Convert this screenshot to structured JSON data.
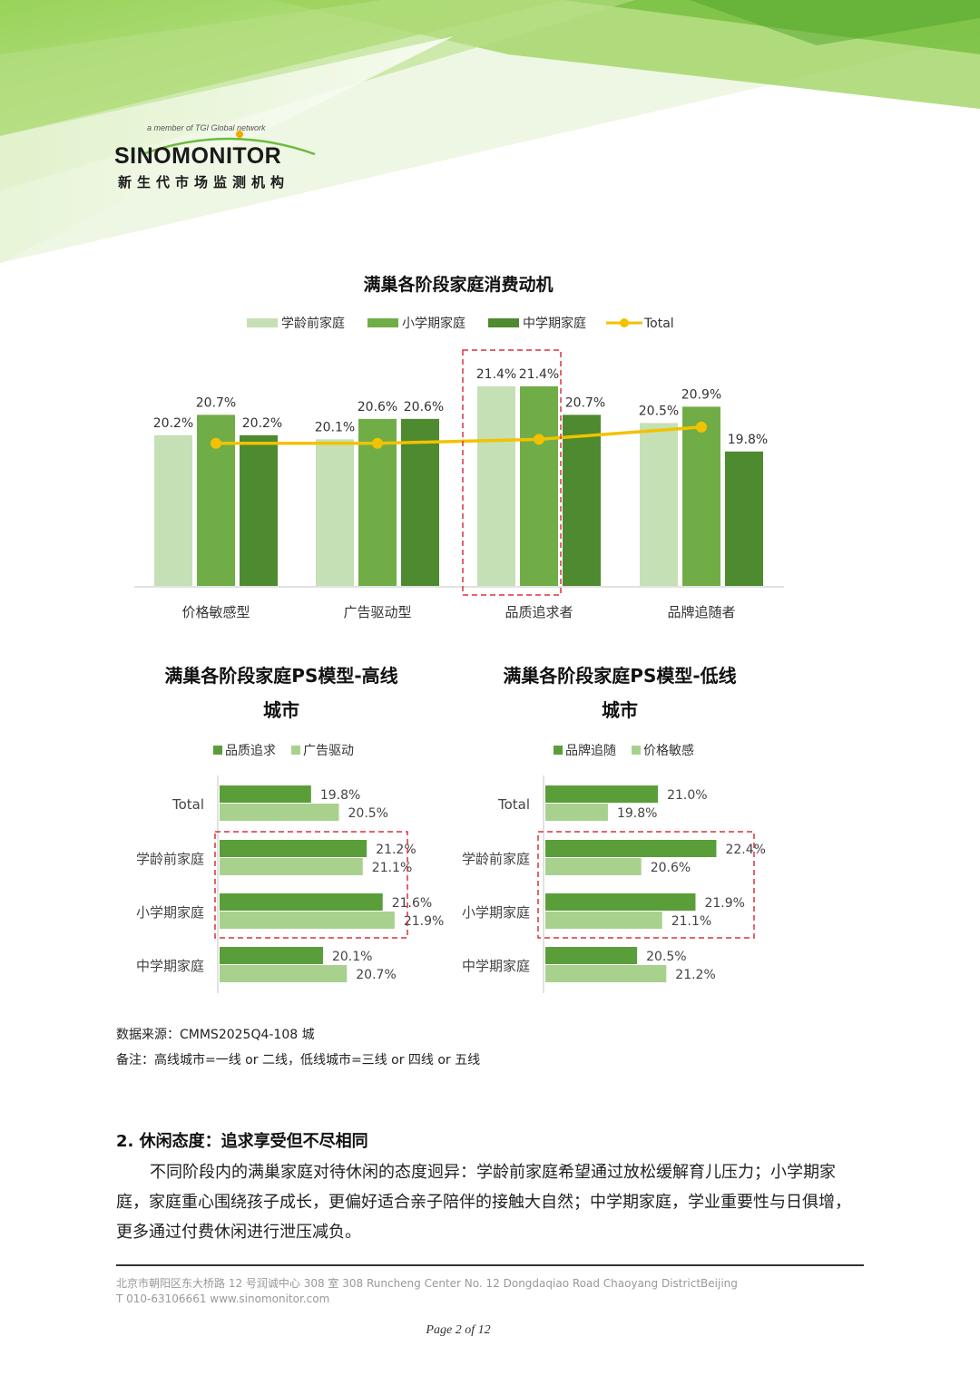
{
  "header": {
    "logo_tag": "a member of TGI Global network",
    "logo_name": "SINOMONITOR",
    "logo_subtitle": "新生代市场监测机构"
  },
  "chart_data": [
    {
      "type": "bar",
      "title": "满巢各阶段家庭消费动机",
      "categories": [
        "价格敏感型",
        "广告驱动型",
        "品质追求者",
        "品牌追随者"
      ],
      "series": [
        {
          "name": "学龄前家庭",
          "values": [
            20.2,
            20.1,
            21.4,
            20.5
          ],
          "labels": [
            "20.2%",
            "20.1%",
            "21.4%",
            "20.5%"
          ]
        },
        {
          "name": "小学期家庭",
          "values": [
            20.7,
            20.6,
            21.4,
            20.9
          ],
          "labels": [
            "20.7%",
            "20.6%",
            "21.4%",
            "20.9%"
          ]
        },
        {
          "name": "中学期家庭",
          "values": [
            20.2,
            20.6,
            20.7,
            19.8
          ],
          "labels": [
            "20.2%",
            "20.6%",
            "20.7%",
            "19.8%"
          ]
        },
        {
          "name": "Total",
          "type": "line",
          "values": [
            20.0,
            20.0,
            20.1,
            20.4
          ]
        }
      ],
      "ylim": [
        16.5,
        22.2
      ],
      "legend": "top",
      "highlight_category": "品质追求者",
      "colors": {
        "学龄前家庭": "#c5e0b4",
        "小学期家庭": "#70ad47",
        "中学期家庭": "#4e8a2f",
        "Total": "#f2c200"
      }
    },
    {
      "type": "bar",
      "orientation": "horizontal",
      "title": "满巢各阶段家庭PS模型-高线城市",
      "categories": [
        "Total",
        "学龄前家庭",
        "小学期家庭",
        "中学期家庭"
      ],
      "series": [
        {
          "name": "品质追求",
          "values": [
            19.8,
            21.2,
            21.6,
            20.1
          ],
          "labels": [
            "19.8%",
            "21.2%",
            "21.6%",
            "20.1%"
          ]
        },
        {
          "name": "广告驱动",
          "values": [
            20.5,
            21.1,
            21.9,
            20.7
          ],
          "labels": [
            "20.5%",
            "21.1%",
            "21.9%",
            "20.7%"
          ]
        }
      ],
      "xlim": [
        17.5,
        23.5
      ],
      "legend": "top",
      "highlight_categories": [
        "学龄前家庭",
        "小学期家庭"
      ],
      "colors": {
        "品质追求": "#5a9e3a",
        "广告驱动": "#a9d18e"
      }
    },
    {
      "type": "bar",
      "orientation": "horizontal",
      "title": "满巢各阶段家庭PS模型-低线城市",
      "categories": [
        "Total",
        "学龄前家庭",
        "小学期家庭",
        "中学期家庭"
      ],
      "series": [
        {
          "name": "品牌追随",
          "values": [
            21.0,
            22.4,
            21.9,
            20.5
          ],
          "labels": [
            "21.0%",
            "22.4%",
            "21.9%",
            "20.5%"
          ]
        },
        {
          "name": "价格敏感",
          "values": [
            19.8,
            20.6,
            21.1,
            21.2
          ],
          "labels": [
            "19.8%",
            "20.6%",
            "21.1%",
            "21.2%"
          ]
        }
      ],
      "xlim": [
        18.3,
        24
      ],
      "legend": "top",
      "highlight_categories": [
        "学龄前家庭",
        "小学期家庭"
      ],
      "colors": {
        "品牌追随": "#5a9e3a",
        "价格敏感": "#a9d18e"
      }
    }
  ],
  "source": "数据来源：CMMS2025Q4-108 城",
  "note": "备注：高线城市=一线 or 二线，低线城市=三线 or 四线 or 五线",
  "section": {
    "title": "2.   休闲态度：追求享受但不尽相同",
    "paragraph": "不同阶段内的满巢家庭对待休闲的态度迥异：学龄前家庭希望通过放松缓解育儿压力；小学期家庭，家庭重心围绕孩子成长，更偏好适合亲子陪伴的接触大自然；中学期家庭，学业重要性与日俱增，更多通过付费休闲进行泄压减负。"
  },
  "footer": {
    "address": "北京市朝阳区东大桥路 12 号润诚中心 308 室  308 Runcheng Center No. 12 Dongdaqiao Road Chaoyang DistrictBeijing",
    "contact": "T 010-63106661    www.sinomonitor.com",
    "page": "Page 2 of 12"
  }
}
